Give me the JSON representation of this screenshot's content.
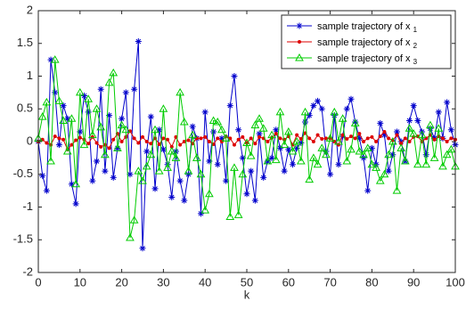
{
  "chart_data": {
    "type": "line",
    "title": "",
    "xlabel": "k",
    "ylabel": "",
    "xlim": [
      0,
      100
    ],
    "ylim": [
      -2,
      2
    ],
    "x_ticks": [
      0,
      10,
      20,
      30,
      40,
      50,
      60,
      70,
      80,
      90,
      100
    ],
    "y_ticks": [
      -2,
      -1.5,
      -1,
      -0.5,
      0,
      0.5,
      1,
      1.5,
      2
    ],
    "grid": false,
    "legend_position": "top-right",
    "x": [
      0,
      1,
      2,
      3,
      4,
      5,
      6,
      7,
      8,
      9,
      10,
      11,
      12,
      13,
      14,
      15,
      16,
      17,
      18,
      19,
      20,
      21,
      22,
      23,
      24,
      25,
      26,
      27,
      28,
      29,
      30,
      31,
      32,
      33,
      34,
      35,
      36,
      37,
      38,
      39,
      40,
      41,
      42,
      43,
      44,
      45,
      46,
      47,
      48,
      49,
      50,
      51,
      52,
      53,
      54,
      55,
      56,
      57,
      58,
      59,
      60,
      61,
      62,
      63,
      64,
      65,
      66,
      67,
      68,
      69,
      70,
      71,
      72,
      73,
      74,
      75,
      76,
      77,
      78,
      79,
      80,
      81,
      82,
      83,
      84,
      85,
      86,
      87,
      88,
      89,
      90,
      91,
      92,
      93,
      94,
      95,
      96,
      97,
      98,
      99,
      100
    ],
    "series": [
      {
        "name": "sample trajectory of x",
        "subscript": "1",
        "color": "#0000CC",
        "marker": "asterisk",
        "values": [
          0,
          -0.52,
          -0.75,
          1.25,
          0.75,
          -0.05,
          0.55,
          0.35,
          -0.65,
          -0.95,
          0.15,
          0.7,
          0.45,
          -0.6,
          -0.3,
          0.8,
          -0.45,
          0.4,
          -0.55,
          -0.1,
          0.35,
          0.75,
          -0.5,
          0.8,
          1.53,
          -1.63,
          -0.15,
          0.38,
          -0.72,
          0.18,
          -0.12,
          -0.35,
          -0.85,
          -0.15,
          -0.6,
          -0.9,
          -0.5,
          0.23,
          0.05,
          -1.1,
          0.45,
          -0.3,
          0.15,
          -0.35,
          0.05,
          -0.6,
          0.55,
          1.0,
          0.18,
          -0.25,
          -0.8,
          -0.45,
          -0.9,
          0.12,
          -0.55,
          -0.3,
          -0.25,
          0.18,
          -0.1,
          -0.45,
          -0.12,
          -0.35,
          -0.1,
          -0.02,
          0.3,
          0.4,
          0.55,
          0.62,
          0.5,
          -0.15,
          -0.5,
          0.4,
          -0.35,
          0.08,
          0.5,
          0.65,
          0.3,
          0.05,
          -0.25,
          -0.75,
          -0.1,
          -0.35,
          0.28,
          0.1,
          -0.45,
          -0.2,
          0.15,
          0.0,
          -0.3,
          0.32,
          0.55,
          0.32,
          0.15,
          -0.2,
          0.2,
          0.05,
          0.45,
          0.05,
          0.6,
          0.18,
          -0.05
        ]
      },
      {
        "name": "sample trajectory of x",
        "subscript": "2",
        "color": "#DD0000",
        "marker": "dot",
        "values": [
          0,
          0.03,
          -0.02,
          -0.05,
          0.08,
          0.05,
          0.03,
          -0.12,
          -0.05,
          0.02,
          0.06,
          0.03,
          -0.03,
          0.07,
          -0.02,
          -0.08,
          -0.05,
          -0.1,
          0.03,
          0.12,
          0.0,
          0.07,
          0.16,
          0.05,
          -0.02,
          0.07,
          0.0,
          -0.03,
          0.05,
          -0.04,
          0.05,
          0.03,
          -0.08,
          0.07,
          -0.05,
          0.0,
          0.02,
          -0.03,
          0.05,
          0.05,
          0.07,
          0.0,
          -0.04,
          0.05,
          0.0,
          0.08,
          0.05,
          -0.05,
          0.03,
          0.07,
          -0.02,
          0.05,
          -0.03,
          0.07,
          0.05,
          0.0,
          0.06,
          0.12,
          0.05,
          0.03,
          0.08,
          -0.05,
          0.1,
          0.04,
          0.13,
          0.05,
          0.0,
          0.1,
          0.04,
          0.05,
          0.05,
          0.0,
          -0.05,
          0.1,
          0.04,
          0.08,
          0.05,
          0.12,
          0.0,
          0.05,
          0.07,
          0.0,
          0.08,
          0.15,
          0.05,
          0.02,
          0.1,
          -0.03,
          0.05,
          0.0,
          0.07,
          0.08,
          0.0,
          0.05,
          0.1,
          0.03,
          0.08,
          0.05,
          0.0,
          0.05,
          0.03
        ]
      },
      {
        "name": "sample trajectory of x",
        "subscript": "3",
        "color": "#00CC00",
        "marker": "triangle",
        "values": [
          0.05,
          0.38,
          0.6,
          -0.3,
          1.25,
          0.62,
          0.32,
          -0.15,
          0.35,
          -0.65,
          0.75,
          -0.05,
          0.65,
          0.1,
          0.5,
          0.22,
          -0.2,
          0.9,
          1.05,
          -0.1,
          0.25,
          0.18,
          -1.47,
          -1.2,
          -0.45,
          -0.6,
          -0.38,
          -0.2,
          0.18,
          -0.45,
          0.5,
          -0.4,
          -0.15,
          -0.25,
          0.75,
          0.3,
          -0.45,
          0.1,
          -0.25,
          -0.5,
          -1.05,
          -0.8,
          0.32,
          0.3,
          0.18,
          0.05,
          -1.15,
          -0.4,
          -1.12,
          -0.5,
          -0.02,
          -0.22,
          0.25,
          0.35,
          0.2,
          -0.3,
          0.1,
          -0.28,
          0.45,
          -0.05,
          0.15,
          -0.15,
          0.0,
          -0.3,
          0.45,
          -0.58,
          -0.25,
          -0.35,
          -0.1,
          -0.2,
          0.05,
          0.45,
          0.0,
          0.35,
          -0.3,
          -0.12,
          0.28,
          -0.15,
          -0.2,
          -0.1,
          -0.35,
          -0.4,
          -0.6,
          -0.5,
          -0.2,
          0.0,
          -0.75,
          -0.1,
          -0.3,
          0.2,
          0.12,
          -0.35,
          0.1,
          -0.35,
          0.25,
          -0.25,
          0.2,
          -0.38,
          -0.2,
          -0.12,
          -0.38
        ]
      }
    ]
  }
}
